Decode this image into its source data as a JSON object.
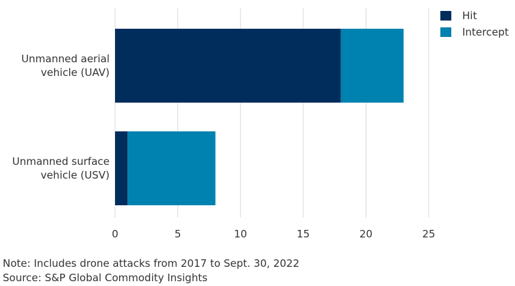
{
  "chart_data": {
    "type": "bar",
    "orientation": "horizontal",
    "stacked": true,
    "categories": [
      [
        "Unmanned aerial",
        "vehicle (UAV)"
      ],
      [
        "Unmanned surface",
        "vehicle (USV)"
      ]
    ],
    "series": [
      {
        "name": "Hit",
        "values": [
          18,
          1
        ],
        "color": "#002d5c"
      },
      {
        "name": "Intercept",
        "values": [
          5,
          7
        ],
        "color": "#0082b0"
      }
    ],
    "xlim": [
      0,
      25
    ],
    "xticks": [
      0,
      5,
      10,
      15,
      20,
      25
    ],
    "grid": true,
    "legend_position": "top-right",
    "title": "",
    "xlabel": "",
    "ylabel": ""
  },
  "footer": {
    "note": "Note: Includes drone attacks from 2017 to Sept. 30, 2022",
    "source": "Source: S&P Global Commodity Insights"
  }
}
